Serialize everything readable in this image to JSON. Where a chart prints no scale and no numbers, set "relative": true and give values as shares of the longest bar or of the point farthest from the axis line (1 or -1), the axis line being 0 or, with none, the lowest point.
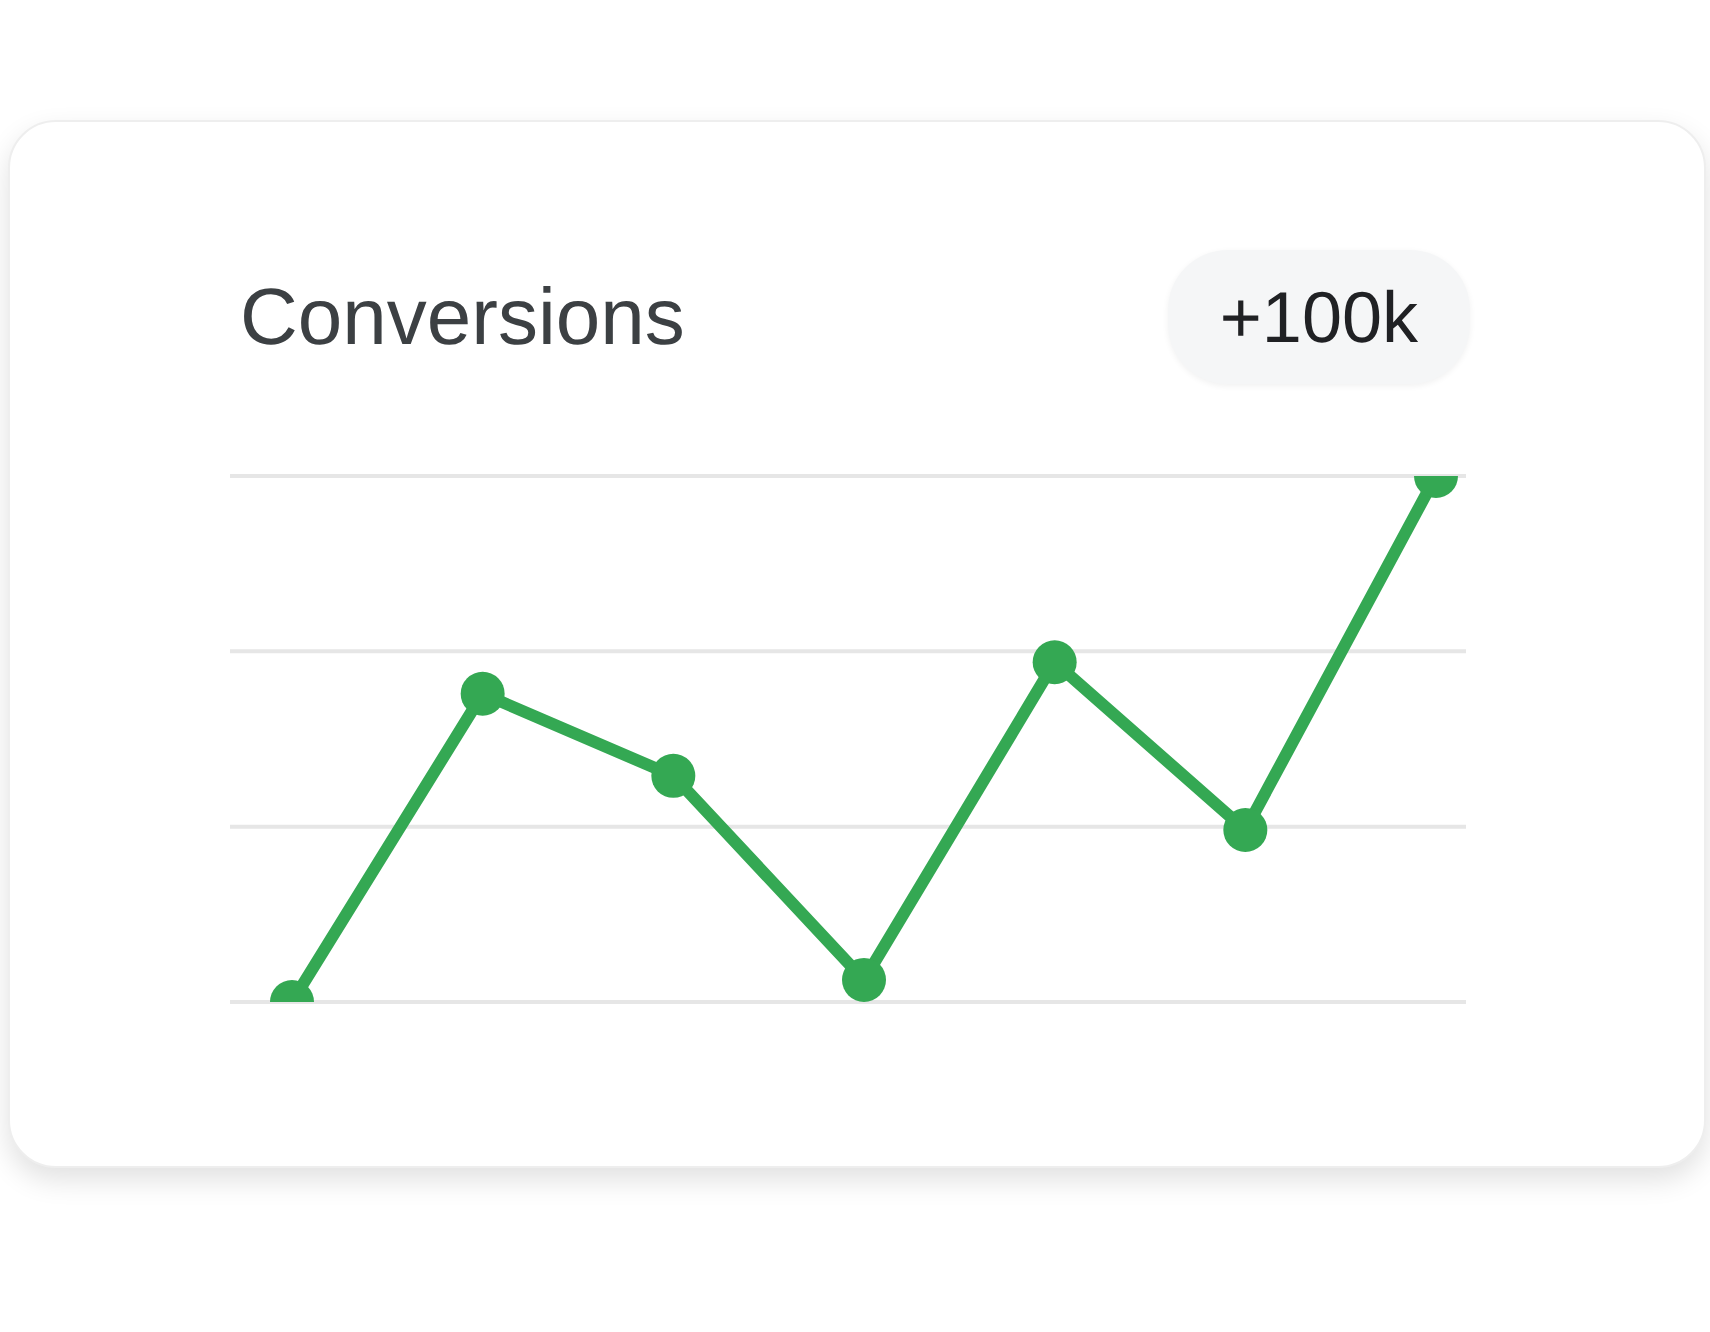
{
  "chart_data": {
    "type": "line",
    "title": "Conversions",
    "annotations": [
      "+100k"
    ],
    "relative": true,
    "categories": [
      null,
      null,
      null,
      null,
      null,
      null,
      null
    ],
    "series": [
      {
        "color": "#34a853",
        "values": [
          0,
          0.586,
          0.43,
          0.042,
          0.646,
          0.327,
          1
        ]
      }
    ],
    "ref_lines": [
      {
        "axis": "y",
        "value": 0,
        "color": "#e6e6e6"
      },
      {
        "axis": "y",
        "value": 0.333,
        "color": "#e6e6e6"
      },
      {
        "axis": "y",
        "value": 0.667,
        "color": "#e6e6e6"
      },
      {
        "axis": "y",
        "value": 1,
        "color": "#e6e6e6"
      }
    ],
    "marker": "circle",
    "line_style": "solid"
  }
}
